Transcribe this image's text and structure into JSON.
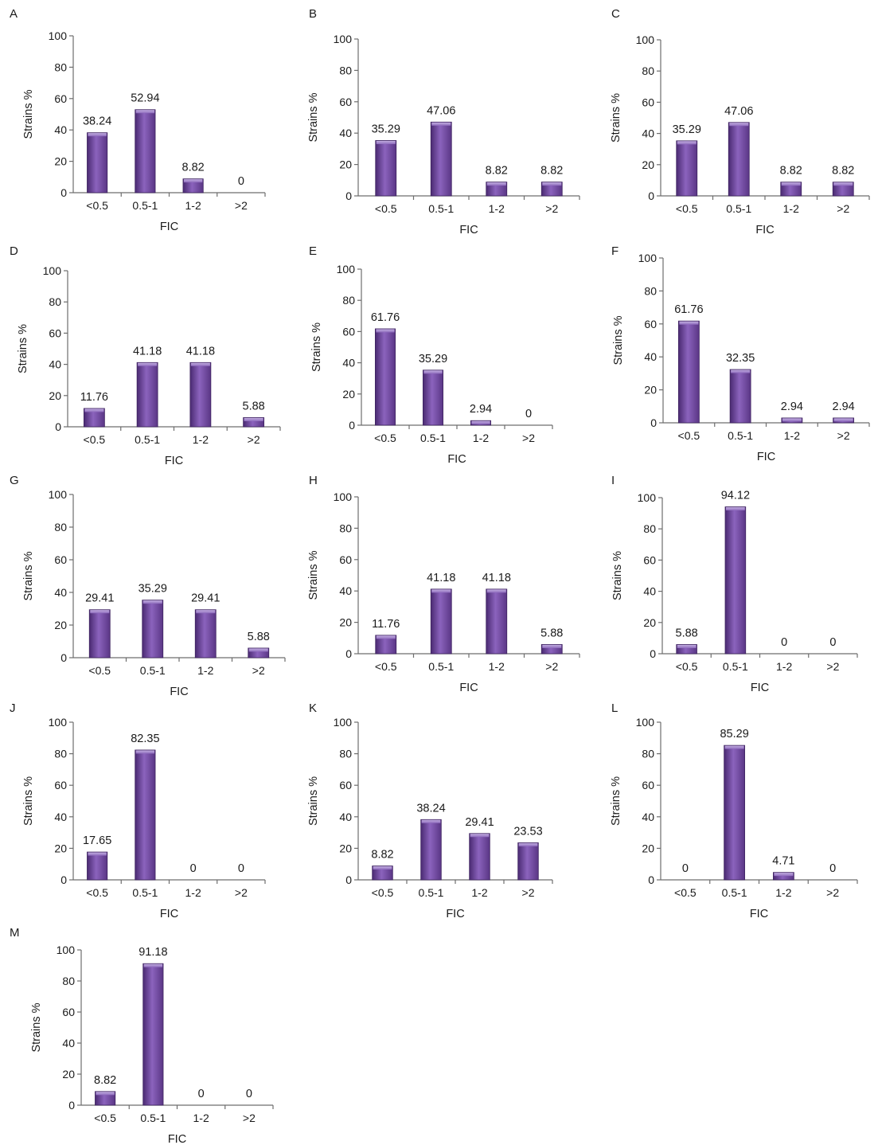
{
  "chart_data": [
    {
      "panel": "A",
      "type": "bar",
      "categories": [
        "<0.5",
        "0.5-1",
        "1-2",
        ">2"
      ],
      "values": [
        38.24,
        52.94,
        8.82,
        0
      ],
      "ylim": [
        0,
        100
      ],
      "yticks": [
        "0",
        "20",
        "40",
        "60",
        "80",
        "100"
      ],
      "xlabel": "FIC",
      "ylabel": "Strains %"
    },
    {
      "panel": "B",
      "type": "bar",
      "categories": [
        "<0.5",
        "0.5-1",
        "1-2",
        ">2"
      ],
      "values": [
        35.29,
        47.06,
        8.82,
        8.82
      ],
      "ylim": [
        0,
        100
      ],
      "yticks": [
        "0",
        "20",
        "40",
        "60",
        "80",
        "100"
      ],
      "xlabel": "FIC",
      "ylabel": "Strains %"
    },
    {
      "panel": "C",
      "type": "bar",
      "categories": [
        "<0.5",
        "0.5-1",
        "1-2",
        ">2"
      ],
      "values": [
        35.29,
        47.06,
        8.82,
        8.82
      ],
      "ylim": [
        0,
        100
      ],
      "yticks": [
        "0",
        "20",
        "40",
        "60",
        "80",
        "100"
      ],
      "xlabel": "FIC",
      "ylabel": "Strains %"
    },
    {
      "panel": "D",
      "type": "bar",
      "categories": [
        "<0.5",
        "0.5-1",
        "1-2",
        ">2"
      ],
      "values": [
        11.76,
        41.18,
        41.18,
        5.88
      ],
      "ylim": [
        0,
        100
      ],
      "yticks": [
        "0",
        "20",
        "40",
        "60",
        "80",
        "100"
      ],
      "xlabel": "FIC",
      "ylabel": "Strains %"
    },
    {
      "panel": "E",
      "type": "bar",
      "categories": [
        "<0.5",
        "0.5-1",
        "1-2",
        ">2"
      ],
      "values": [
        61.76,
        35.29,
        2.94,
        0
      ],
      "ylim": [
        0,
        100
      ],
      "yticks": [
        "0",
        "20",
        "40",
        "60",
        "80",
        "100"
      ],
      "xlabel": "FIC",
      "ylabel": "Strains %"
    },
    {
      "panel": "F",
      "type": "bar",
      "categories": [
        "<0.5",
        "0.5-1",
        "1-2",
        ">2"
      ],
      "values": [
        61.76,
        32.35,
        2.94,
        2.94
      ],
      "ylim": [
        0,
        100
      ],
      "yticks": [
        "0",
        "20",
        "40",
        "60",
        "80",
        "100"
      ],
      "xlabel": "FIC",
      "ylabel": "Strains %"
    },
    {
      "panel": "G",
      "type": "bar",
      "categories": [
        "<0.5",
        "0.5-1",
        "1-2",
        ">2"
      ],
      "values": [
        29.41,
        35.29,
        29.41,
        5.88
      ],
      "ylim": [
        0,
        100
      ],
      "yticks": [
        "0",
        "20",
        "40",
        "60",
        "80",
        "100"
      ],
      "xlabel": "FIC",
      "ylabel": "Strains %"
    },
    {
      "panel": "H",
      "type": "bar",
      "categories": [
        "<0.5",
        "0.5-1",
        "1-2",
        ">2"
      ],
      "values": [
        11.76,
        41.18,
        41.18,
        5.88
      ],
      "ylim": [
        0,
        100
      ],
      "yticks": [
        "0",
        "20",
        "40",
        "60",
        "80",
        "100"
      ],
      "xlabel": "FIC",
      "ylabel": "Strains %"
    },
    {
      "panel": "I",
      "type": "bar",
      "categories": [
        "<0.5",
        "0.5-1",
        "1-2",
        ">2"
      ],
      "values": [
        5.88,
        94.12,
        0,
        0
      ],
      "ylim": [
        0,
        100
      ],
      "yticks": [
        "0",
        "20",
        "40",
        "60",
        "80",
        "100"
      ],
      "xlabel": "FIC",
      "ylabel": "Strains %"
    },
    {
      "panel": "J",
      "type": "bar",
      "categories": [
        "<0.5",
        "0.5-1",
        "1-2",
        ">2"
      ],
      "values": [
        17.65,
        82.35,
        0,
        0
      ],
      "ylim": [
        0,
        100
      ],
      "yticks": [
        "0",
        "20",
        "40",
        "60",
        "80",
        "100"
      ],
      "xlabel": "FIC",
      "ylabel": "Strains %"
    },
    {
      "panel": "K",
      "type": "bar",
      "categories": [
        "<0.5",
        "0.5-1",
        "1-2",
        ">2"
      ],
      "values": [
        8.82,
        38.24,
        29.41,
        23.53
      ],
      "ylim": [
        0,
        100
      ],
      "yticks": [
        "0",
        "20",
        "40",
        "60",
        "80",
        "100"
      ],
      "xlabel": "FIC",
      "ylabel": "Strains %"
    },
    {
      "panel": "L",
      "type": "bar",
      "categories": [
        "<0.5",
        "0.5-1",
        "1-2",
        ">2"
      ],
      "values": [
        0,
        85.29,
        4.71,
        0
      ],
      "ylim": [
        0,
        100
      ],
      "yticks": [
        "0",
        "20",
        "40",
        "60",
        "80",
        "100"
      ],
      "xlabel": "FIC",
      "ylabel": "Strains %"
    },
    {
      "panel": "M",
      "type": "bar",
      "categories": [
        "<0.5",
        "0.5-1",
        "1-2",
        ">2"
      ],
      "values": [
        8.82,
        91.18,
        0,
        0
      ],
      "ylim": [
        0,
        100
      ],
      "yticks": [
        "0",
        "20",
        "40",
        "60",
        "80",
        "100"
      ],
      "xlabel": "FIC",
      "ylabel": "Strains %"
    }
  ],
  "colors": {
    "bar_dark": "#4a2a72",
    "bar_mid": "#7b52ad",
    "bar_light": "#a889d2",
    "axis": "#6d6d6d"
  }
}
